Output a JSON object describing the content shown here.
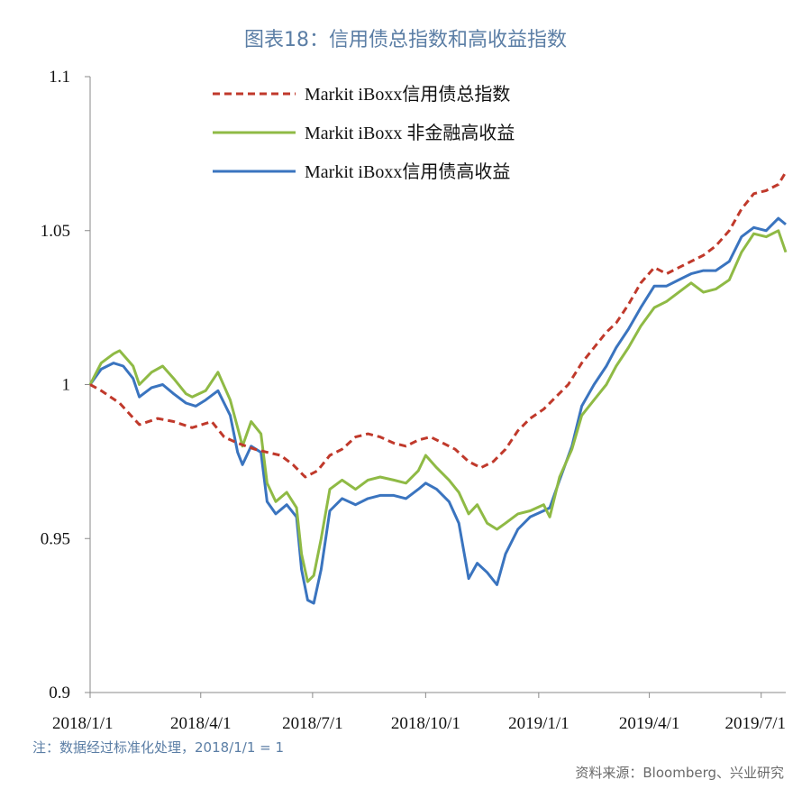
{
  "title": "图表18：信用债总指数和高收益指数",
  "note": "注：数据经过标准化处理，2018/1/1 = 1",
  "source": "资料来源：Bloomberg、兴业研究",
  "colors": {
    "total": "#c0392b",
    "nonfin": "#8fba45",
    "hy": "#3a74bf"
  },
  "chart_data": {
    "type": "line",
    "x_tick_labels": [
      "2018/1/1",
      "2018/4/1",
      "2018/7/1",
      "2018/10/1",
      "2019/1/1",
      "2019/4/1",
      "2019/7/1"
    ],
    "x_ticks": [
      "2018-01-01",
      "2018-04-01",
      "2018-07-01",
      "2018-10-01",
      "2019-01-01",
      "2019-04-01",
      "2019-07-01"
    ],
    "y_ticks": [
      "0.9",
      "0.95",
      "1",
      "1.05",
      "1.1"
    ],
    "ylim": [
      0.9,
      1.1
    ],
    "xlim": [
      "2018-01-01",
      "2019-07-21"
    ],
    "legend_position": "top-left",
    "series": [
      {
        "name": "Markit iBoxx信用债总指数",
        "style": "dashed",
        "color": "#c0392b",
        "points": [
          [
            "2018-01-01",
            1.0
          ],
          [
            "2018-01-10",
            0.998
          ],
          [
            "2018-01-25",
            0.994
          ],
          [
            "2018-02-10",
            0.987
          ],
          [
            "2018-02-25",
            0.989
          ],
          [
            "2018-03-10",
            0.988
          ],
          [
            "2018-03-25",
            0.986
          ],
          [
            "2018-04-10",
            0.988
          ],
          [
            "2018-04-20",
            0.983
          ],
          [
            "2018-05-01",
            0.981
          ],
          [
            "2018-05-15",
            0.979
          ],
          [
            "2018-05-25",
            0.978
          ],
          [
            "2018-06-05",
            0.977
          ],
          [
            "2018-06-15",
            0.974
          ],
          [
            "2018-06-25",
            0.97
          ],
          [
            "2018-07-05",
            0.972
          ],
          [
            "2018-07-15",
            0.977
          ],
          [
            "2018-07-25",
            0.979
          ],
          [
            "2018-08-05",
            0.983
          ],
          [
            "2018-08-15",
            0.984
          ],
          [
            "2018-08-25",
            0.983
          ],
          [
            "2018-09-05",
            0.981
          ],
          [
            "2018-09-15",
            0.98
          ],
          [
            "2018-09-25",
            0.982
          ],
          [
            "2018-10-05",
            0.983
          ],
          [
            "2018-10-15",
            0.981
          ],
          [
            "2018-10-25",
            0.979
          ],
          [
            "2018-11-05",
            0.975
          ],
          [
            "2018-11-15",
            0.973
          ],
          [
            "2018-11-25",
            0.975
          ],
          [
            "2018-12-05",
            0.979
          ],
          [
            "2018-12-15",
            0.985
          ],
          [
            "2018-12-25",
            0.989
          ],
          [
            "2019-01-05",
            0.992
          ],
          [
            "2019-01-15",
            0.996
          ],
          [
            "2019-01-25",
            1.0
          ],
          [
            "2019-02-05",
            1.007
          ],
          [
            "2019-02-15",
            1.012
          ],
          [
            "2019-02-25",
            1.017
          ],
          [
            "2019-03-05",
            1.02
          ],
          [
            "2019-03-15",
            1.026
          ],
          [
            "2019-03-25",
            1.033
          ],
          [
            "2019-04-05",
            1.038
          ],
          [
            "2019-04-15",
            1.036
          ],
          [
            "2019-04-25",
            1.038
          ],
          [
            "2019-05-05",
            1.04
          ],
          [
            "2019-05-15",
            1.042
          ],
          [
            "2019-05-25",
            1.045
          ],
          [
            "2019-06-05",
            1.05
          ],
          [
            "2019-06-15",
            1.057
          ],
          [
            "2019-06-25",
            1.062
          ],
          [
            "2019-07-05",
            1.063
          ],
          [
            "2019-07-15",
            1.065
          ],
          [
            "2019-07-21",
            1.069
          ]
        ]
      },
      {
        "name": "Markit iBoxx 非金融高收益",
        "style": "solid",
        "color": "#8fba45",
        "points": [
          [
            "2018-01-01",
            1.0
          ],
          [
            "2018-01-10",
            1.007
          ],
          [
            "2018-01-20",
            1.01
          ],
          [
            "2018-01-25",
            1.011
          ],
          [
            "2018-02-05",
            1.006
          ],
          [
            "2018-02-10",
            1.0
          ],
          [
            "2018-02-20",
            1.004
          ],
          [
            "2018-03-01",
            1.006
          ],
          [
            "2018-03-10",
            1.002
          ],
          [
            "2018-03-20",
            0.997
          ],
          [
            "2018-03-25",
            0.996
          ],
          [
            "2018-04-05",
            0.998
          ],
          [
            "2018-04-15",
            1.004
          ],
          [
            "2018-04-25",
            0.995
          ],
          [
            "2018-05-01",
            0.986
          ],
          [
            "2018-05-05",
            0.98
          ],
          [
            "2018-05-12",
            0.988
          ],
          [
            "2018-05-20",
            0.984
          ],
          [
            "2018-05-25",
            0.968
          ],
          [
            "2018-06-01",
            0.962
          ],
          [
            "2018-06-10",
            0.965
          ],
          [
            "2018-06-18",
            0.96
          ],
          [
            "2018-06-22",
            0.945
          ],
          [
            "2018-06-27",
            0.936
          ],
          [
            "2018-07-02",
            0.938
          ],
          [
            "2018-07-08",
            0.95
          ],
          [
            "2018-07-15",
            0.966
          ],
          [
            "2018-07-25",
            0.969
          ],
          [
            "2018-08-05",
            0.966
          ],
          [
            "2018-08-15",
            0.969
          ],
          [
            "2018-08-25",
            0.97
          ],
          [
            "2018-09-05",
            0.969
          ],
          [
            "2018-09-15",
            0.968
          ],
          [
            "2018-09-25",
            0.972
          ],
          [
            "2018-10-01",
            0.977
          ],
          [
            "2018-10-10",
            0.973
          ],
          [
            "2018-10-20",
            0.969
          ],
          [
            "2018-10-28",
            0.965
          ],
          [
            "2018-11-05",
            0.958
          ],
          [
            "2018-11-12",
            0.961
          ],
          [
            "2018-11-20",
            0.955
          ],
          [
            "2018-11-28",
            0.953
          ],
          [
            "2018-12-05",
            0.955
          ],
          [
            "2018-12-15",
            0.958
          ],
          [
            "2018-12-25",
            0.959
          ],
          [
            "2019-01-05",
            0.961
          ],
          [
            "2019-01-10",
            0.957
          ],
          [
            "2019-01-18",
            0.97
          ],
          [
            "2019-01-28",
            0.979
          ],
          [
            "2019-02-05",
            0.99
          ],
          [
            "2019-02-15",
            0.995
          ],
          [
            "2019-02-25",
            1.0
          ],
          [
            "2019-03-05",
            1.006
          ],
          [
            "2019-03-15",
            1.012
          ],
          [
            "2019-03-25",
            1.019
          ],
          [
            "2019-04-05",
            1.025
          ],
          [
            "2019-04-15",
            1.027
          ],
          [
            "2019-04-25",
            1.03
          ],
          [
            "2019-05-05",
            1.033
          ],
          [
            "2019-05-15",
            1.03
          ],
          [
            "2019-05-25",
            1.031
          ],
          [
            "2019-06-05",
            1.034
          ],
          [
            "2019-06-15",
            1.043
          ],
          [
            "2019-06-25",
            1.049
          ],
          [
            "2019-07-05",
            1.048
          ],
          [
            "2019-07-15",
            1.05
          ],
          [
            "2019-07-21",
            1.043
          ]
        ]
      },
      {
        "name": "Markit iBoxx信用债高收益",
        "style": "solid",
        "color": "#3a74bf",
        "points": [
          [
            "2018-01-01",
            1.0
          ],
          [
            "2018-01-10",
            1.005
          ],
          [
            "2018-01-20",
            1.007
          ],
          [
            "2018-01-28",
            1.006
          ],
          [
            "2018-02-05",
            1.002
          ],
          [
            "2018-02-10",
            0.996
          ],
          [
            "2018-02-20",
            0.999
          ],
          [
            "2018-03-01",
            1.0
          ],
          [
            "2018-03-10",
            0.997
          ],
          [
            "2018-03-20",
            0.994
          ],
          [
            "2018-03-28",
            0.993
          ],
          [
            "2018-04-05",
            0.995
          ],
          [
            "2018-04-15",
            0.998
          ],
          [
            "2018-04-25",
            0.99
          ],
          [
            "2018-05-01",
            0.978
          ],
          [
            "2018-05-05",
            0.974
          ],
          [
            "2018-05-12",
            0.98
          ],
          [
            "2018-05-20",
            0.978
          ],
          [
            "2018-05-25",
            0.962
          ],
          [
            "2018-06-01",
            0.958
          ],
          [
            "2018-06-10",
            0.961
          ],
          [
            "2018-06-18",
            0.957
          ],
          [
            "2018-06-22",
            0.94
          ],
          [
            "2018-06-27",
            0.93
          ],
          [
            "2018-07-02",
            0.929
          ],
          [
            "2018-07-08",
            0.94
          ],
          [
            "2018-07-15",
            0.959
          ],
          [
            "2018-07-25",
            0.963
          ],
          [
            "2018-08-05",
            0.961
          ],
          [
            "2018-08-15",
            0.963
          ],
          [
            "2018-08-25",
            0.964
          ],
          [
            "2018-09-05",
            0.964
          ],
          [
            "2018-09-15",
            0.963
          ],
          [
            "2018-09-25",
            0.966
          ],
          [
            "2018-10-01",
            0.968
          ],
          [
            "2018-10-10",
            0.966
          ],
          [
            "2018-10-20",
            0.962
          ],
          [
            "2018-10-28",
            0.955
          ],
          [
            "2018-11-05",
            0.937
          ],
          [
            "2018-11-12",
            0.942
          ],
          [
            "2018-11-20",
            0.939
          ],
          [
            "2018-11-28",
            0.935
          ],
          [
            "2018-12-05",
            0.945
          ],
          [
            "2018-12-15",
            0.953
          ],
          [
            "2018-12-25",
            0.957
          ],
          [
            "2019-01-05",
            0.959
          ],
          [
            "2019-01-10",
            0.96
          ],
          [
            "2019-01-18",
            0.969
          ],
          [
            "2019-01-28",
            0.98
          ],
          [
            "2019-02-05",
            0.993
          ],
          [
            "2019-02-15",
            1.0
          ],
          [
            "2019-02-25",
            1.006
          ],
          [
            "2019-03-05",
            1.012
          ],
          [
            "2019-03-15",
            1.018
          ],
          [
            "2019-03-25",
            1.025
          ],
          [
            "2019-04-05",
            1.032
          ],
          [
            "2019-04-15",
            1.032
          ],
          [
            "2019-04-25",
            1.034
          ],
          [
            "2019-05-05",
            1.036
          ],
          [
            "2019-05-15",
            1.037
          ],
          [
            "2019-05-25",
            1.037
          ],
          [
            "2019-06-05",
            1.04
          ],
          [
            "2019-06-15",
            1.048
          ],
          [
            "2019-06-25",
            1.051
          ],
          [
            "2019-07-05",
            1.05
          ],
          [
            "2019-07-15",
            1.054
          ],
          [
            "2019-07-21",
            1.052
          ]
        ]
      }
    ]
  }
}
